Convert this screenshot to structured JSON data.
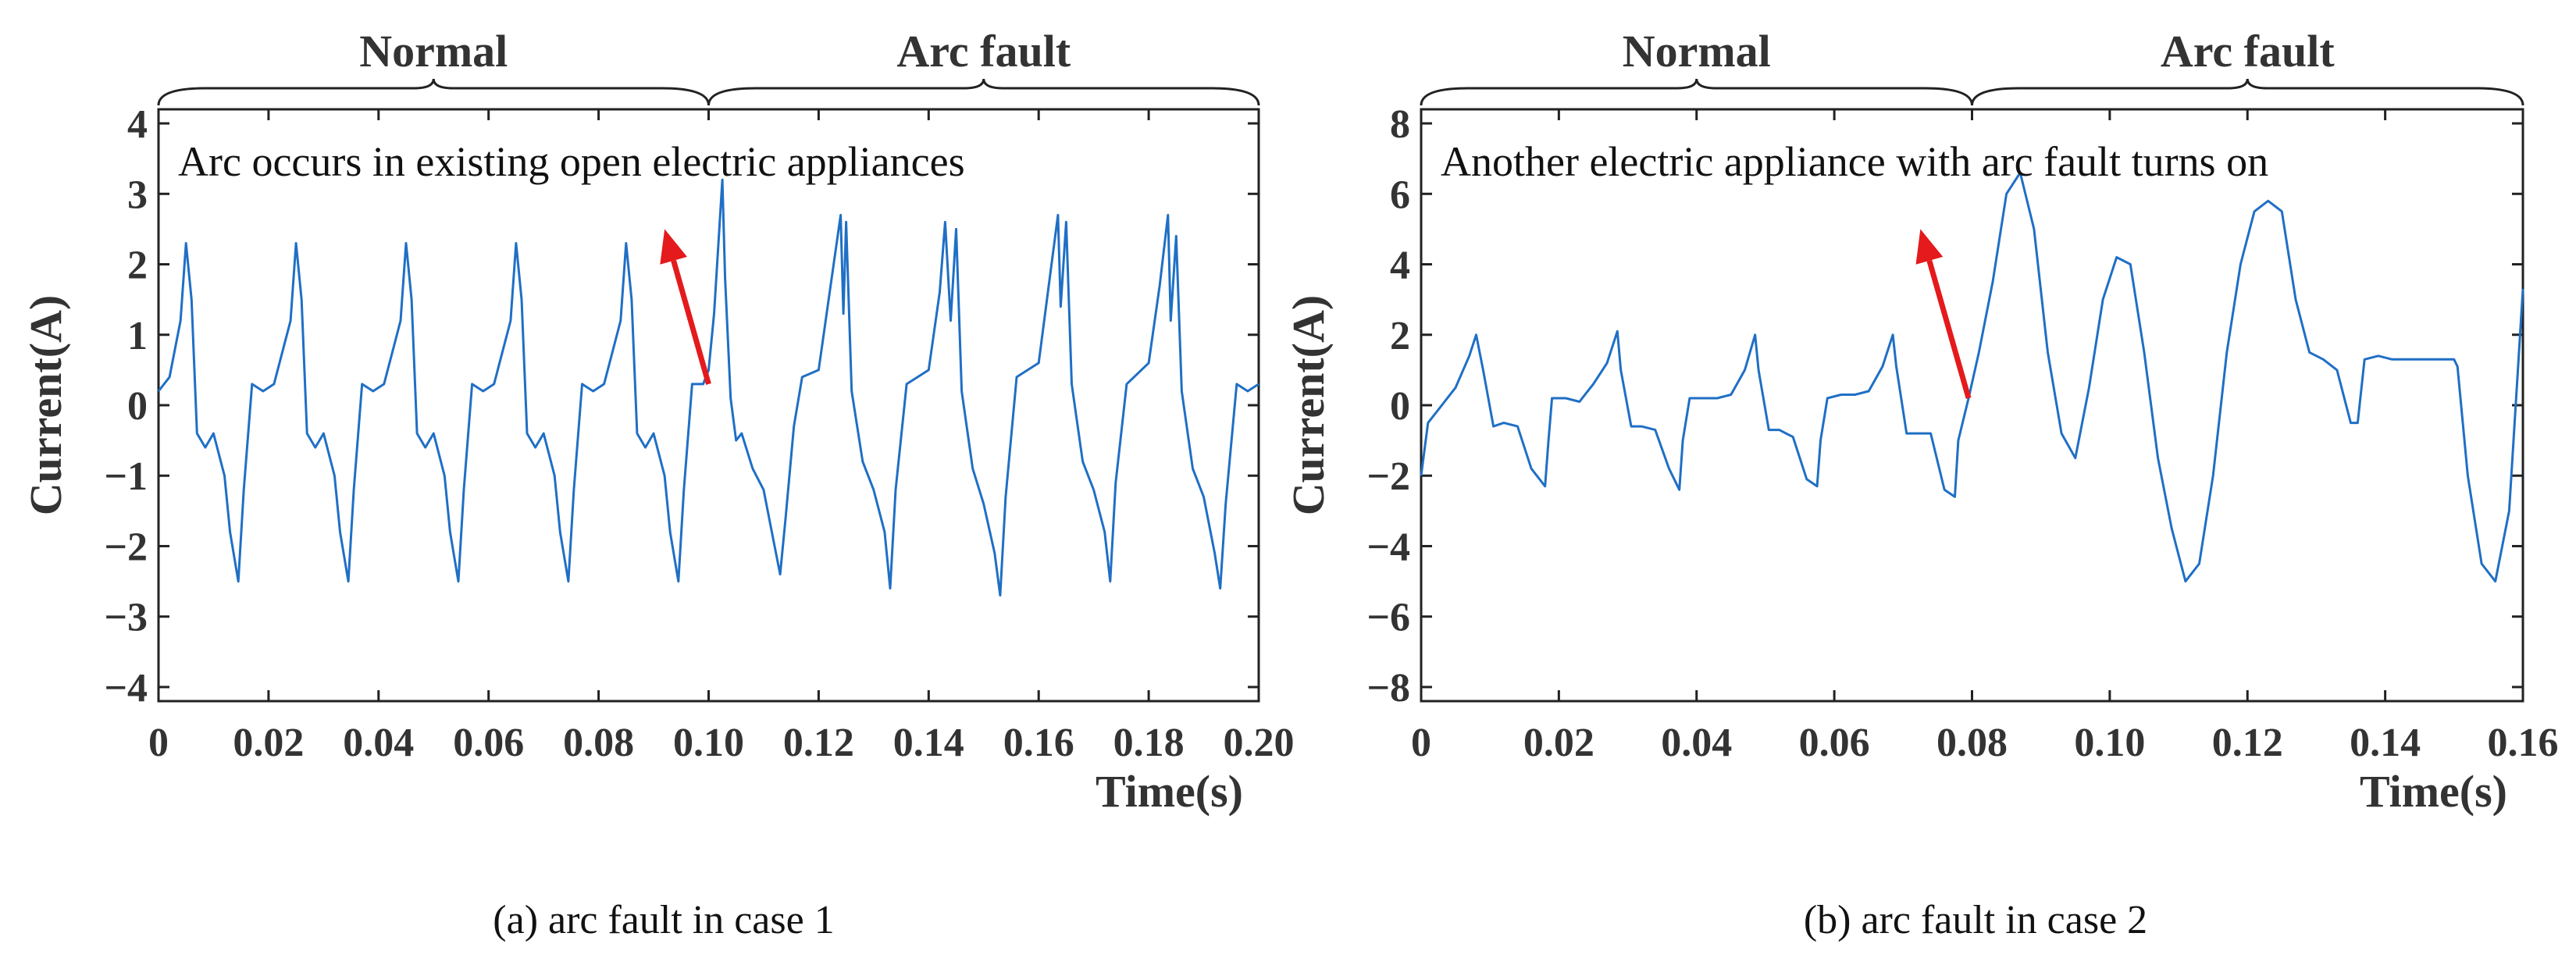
{
  "colors": {
    "line": "#1f6fc5",
    "arrow": "#e41a1c",
    "axis": "#222222",
    "text": "#333333"
  },
  "chart_data": [
    {
      "type": "line",
      "title": "",
      "caption": "(a) arc fault in case 1",
      "annotation": "Arc occurs in existing open electric appliances",
      "xlabel": "Time(s)",
      "ylabel": "Current(A)",
      "xlim": [
        0,
        0.2
      ],
      "ylim": [
        -4.2,
        4.2
      ],
      "xticks": [
        0,
        0.02,
        0.04,
        0.06,
        0.08,
        0.1,
        0.12,
        0.14,
        0.16,
        0.18,
        0.2
      ],
      "xtick_labels": [
        "0",
        "0.02",
        "0.04",
        "0.06",
        "0.08",
        "0.10",
        "0.12",
        "0.14",
        "0.16",
        "0.18",
        "0.20"
      ],
      "yticks": [
        -4,
        -3,
        -2,
        -1,
        0,
        1,
        2,
        3,
        4
      ],
      "ytick_labels": [
        "−4",
        "−3",
        "−2",
        "−1",
        "0",
        "1",
        "2",
        "3",
        "4"
      ],
      "regions": [
        {
          "label": "Normal",
          "start": 0,
          "end": 0.1
        },
        {
          "label": "Arc fault",
          "start": 0.1,
          "end": 0.2
        }
      ],
      "arrow": {
        "from": [
          0.1,
          0.3
        ],
        "to": [
          0.092,
          2.5
        ]
      },
      "series": [
        {
          "name": "current",
          "x": [
            0,
            0.002,
            0.004,
            0.005,
            0.006,
            0.007,
            0.0085,
            0.01,
            0.012,
            0.013,
            0.0145,
            0.0155,
            0.017,
            0.019,
            0.021,
            0.024,
            0.025,
            0.026,
            0.027,
            0.0285,
            0.03,
            0.032,
            0.033,
            0.0345,
            0.0355,
            0.037,
            0.039,
            0.041,
            0.044,
            0.045,
            0.046,
            0.047,
            0.0485,
            0.05,
            0.052,
            0.053,
            0.0545,
            0.0555,
            0.057,
            0.059,
            0.061,
            0.064,
            0.065,
            0.066,
            0.067,
            0.0685,
            0.07,
            0.072,
            0.073,
            0.0745,
            0.0755,
            0.077,
            0.079,
            0.081,
            0.084,
            0.085,
            0.086,
            0.087,
            0.0885,
            0.09,
            0.092,
            0.093,
            0.0945,
            0.0955,
            0.097,
            0.099,
            0.1,
            0.101,
            0.1025,
            0.103,
            0.104,
            0.105,
            0.106,
            0.108,
            0.11,
            0.112,
            0.113,
            0.114,
            0.1155,
            0.117,
            0.12,
            0.122,
            0.124,
            0.1245,
            0.125,
            0.126,
            0.128,
            0.13,
            0.132,
            0.133,
            0.134,
            0.136,
            0.14,
            0.142,
            0.143,
            0.144,
            0.145,
            0.146,
            0.148,
            0.15,
            0.152,
            0.153,
            0.154,
            0.156,
            0.16,
            0.162,
            0.1635,
            0.164,
            0.165,
            0.166,
            0.168,
            0.17,
            0.172,
            0.173,
            0.174,
            0.176,
            0.18,
            0.182,
            0.1835,
            0.184,
            0.185,
            0.186,
            0.188,
            0.19,
            0.192,
            0.193,
            0.194,
            0.196,
            0.198,
            0.2
          ],
          "y": [
            0.2,
            0.4,
            1.2,
            2.3,
            1.5,
            -0.4,
            -0.6,
            -0.4,
            -1.0,
            -1.8,
            -2.5,
            -1.2,
            0.3,
            0.2,
            0.3,
            1.2,
            2.3,
            1.5,
            -0.4,
            -0.6,
            -0.4,
            -1.0,
            -1.8,
            -2.5,
            -1.2,
            0.3,
            0.2,
            0.3,
            1.2,
            2.3,
            1.5,
            -0.4,
            -0.6,
            -0.4,
            -1.0,
            -1.8,
            -2.5,
            -1.2,
            0.3,
            0.2,
            0.3,
            1.2,
            2.3,
            1.5,
            -0.4,
            -0.6,
            -0.4,
            -1.0,
            -1.8,
            -2.5,
            -1.2,
            0.3,
            0.2,
            0.3,
            1.2,
            2.3,
            1.5,
            -0.4,
            -0.6,
            -0.4,
            -1.0,
            -1.8,
            -2.5,
            -1.2,
            0.3,
            0.3,
            0.5,
            1.3,
            3.2,
            1.8,
            0.1,
            -0.5,
            -0.4,
            -0.9,
            -1.2,
            -2.0,
            -2.4,
            -1.6,
            -0.3,
            0.4,
            0.5,
            1.6,
            2.7,
            1.3,
            2.6,
            0.2,
            -0.8,
            -1.2,
            -1.8,
            -2.6,
            -1.2,
            0.3,
            0.5,
            1.6,
            2.6,
            1.2,
            2.5,
            0.2,
            -0.9,
            -1.4,
            -2.1,
            -2.7,
            -1.3,
            0.4,
            0.6,
            1.8,
            2.7,
            1.4,
            2.6,
            0.3,
            -0.8,
            -1.2,
            -1.8,
            -2.5,
            -1.1,
            0.3,
            0.6,
            1.7,
            2.7,
            1.2,
            2.4,
            0.2,
            -0.9,
            -1.3,
            -2.1,
            -2.6,
            -1.4,
            0.3,
            0.2,
            0.3
          ]
        }
      ]
    },
    {
      "type": "line",
      "title": "",
      "caption": "(b) arc fault in case 2",
      "annotation": "Another electric appliance with arc fault turns on",
      "xlabel": "Time(s)",
      "ylabel": "Current(A)",
      "xlim": [
        0,
        0.16
      ],
      "ylim": [
        -8.4,
        8.4
      ],
      "xticks": [
        0,
        0.02,
        0.04,
        0.06,
        0.08,
        0.1,
        0.12,
        0.14,
        0.16
      ],
      "xtick_labels": [
        "0",
        "0.02",
        "0.04",
        "0.06",
        "0.08",
        "0.10",
        "0.12",
        "0.14",
        "0.16"
      ],
      "yticks": [
        -8,
        -6,
        -4,
        -2,
        0,
        2,
        4,
        6,
        8
      ],
      "ytick_labels": [
        "−8",
        "−6",
        "−4",
        "−2",
        "0",
        "2",
        "4",
        "6",
        "8"
      ],
      "regions": [
        {
          "label": "Normal",
          "start": 0,
          "end": 0.08
        },
        {
          "label": "Arc fault",
          "start": 0.08,
          "end": 0.16
        }
      ],
      "arrow": {
        "from": [
          0.0795,
          0.2
        ],
        "to": [
          0.0725,
          5.0
        ]
      },
      "series": [
        {
          "name": "current",
          "x": [
            0,
            0.001,
            0.003,
            0.005,
            0.007,
            0.008,
            0.009,
            0.0105,
            0.012,
            0.014,
            0.016,
            0.018,
            0.0185,
            0.019,
            0.021,
            0.023,
            0.025,
            0.027,
            0.0285,
            0.029,
            0.0305,
            0.032,
            0.034,
            0.036,
            0.0375,
            0.038,
            0.039,
            0.041,
            0.043,
            0.045,
            0.047,
            0.0485,
            0.049,
            0.0505,
            0.052,
            0.054,
            0.056,
            0.0575,
            0.058,
            0.059,
            0.061,
            0.063,
            0.065,
            0.067,
            0.0685,
            0.069,
            0.0705,
            0.072,
            0.074,
            0.076,
            0.0775,
            0.078,
            0.0795,
            0.081,
            0.083,
            0.085,
            0.087,
            0.089,
            0.091,
            0.093,
            0.095,
            0.097,
            0.099,
            0.101,
            0.103,
            0.105,
            0.107,
            0.109,
            0.111,
            0.113,
            0.115,
            0.117,
            0.119,
            0.121,
            0.123,
            0.125,
            0.127,
            0.129,
            0.131,
            0.133,
            0.135,
            0.136,
            0.137,
            0.139,
            0.141,
            0.145,
            0.15,
            0.1505,
            0.152,
            0.154,
            0.156,
            0.158,
            0.16
          ],
          "y": [
            -2.0,
            -0.5,
            0.0,
            0.5,
            1.4,
            2.0,
            1.0,
            -0.6,
            -0.5,
            -0.6,
            -1.8,
            -2.3,
            -1.0,
            0.2,
            0.2,
            0.1,
            0.6,
            1.2,
            2.1,
            1.0,
            -0.6,
            -0.6,
            -0.7,
            -1.8,
            -2.4,
            -1.0,
            0.2,
            0.2,
            0.2,
            0.3,
            1.0,
            2.0,
            1.0,
            -0.7,
            -0.7,
            -0.9,
            -2.1,
            -2.3,
            -1.0,
            0.2,
            0.3,
            0.3,
            0.4,
            1.1,
            2.0,
            1.1,
            -0.8,
            -0.8,
            -0.8,
            -2.4,
            -2.6,
            -1.0,
            0.2,
            1.5,
            3.5,
            6.0,
            6.6,
            5.0,
            1.5,
            -0.8,
            -1.5,
            0.5,
            3.0,
            4.2,
            4.0,
            1.5,
            -1.5,
            -3.5,
            -5.0,
            -4.5,
            -2.0,
            1.5,
            4.0,
            5.5,
            5.8,
            5.5,
            3.0,
            1.5,
            1.3,
            1.0,
            -0.5,
            -0.5,
            1.3,
            1.4,
            1.3,
            1.3,
            1.3,
            1.1,
            -2.0,
            -4.5,
            -5.0,
            -3.0,
            3.3
          ]
        }
      ]
    }
  ]
}
